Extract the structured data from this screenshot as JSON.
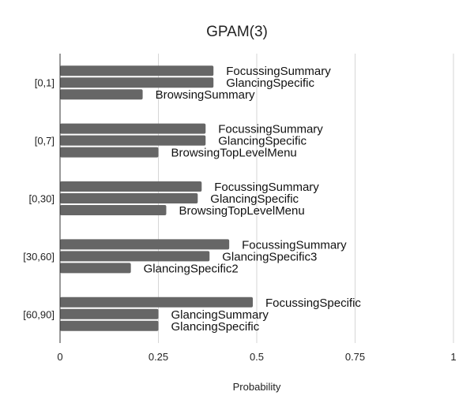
{
  "chart_data": {
    "type": "bar",
    "orientation": "horizontal",
    "title": "GPAM(3)",
    "xlabel": "Probability",
    "ylabel": "",
    "xlim": [
      0,
      1
    ],
    "xticks": [
      "0",
      "0.25",
      "0.5",
      "0.75",
      "1"
    ],
    "grid": true,
    "legend": "none",
    "bar_color": "#666666",
    "groups": [
      {
        "category": "[0,1]",
        "bars": [
          {
            "label": "FocussingSummary",
            "value": 0.39
          },
          {
            "label": "GlancingSpecific",
            "value": 0.39
          },
          {
            "label": "BrowsingSummary",
            "value": 0.21
          }
        ]
      },
      {
        "category": "[0,7]",
        "bars": [
          {
            "label": "FocussingSummary",
            "value": 0.37
          },
          {
            "label": "GlancingSpecific",
            "value": 0.37
          },
          {
            "label": "BrowsingTopLevelMenu",
            "value": 0.25
          }
        ]
      },
      {
        "category": "[0,30]",
        "bars": [
          {
            "label": "FocussingSummary",
            "value": 0.36
          },
          {
            "label": "GlancingSpecific",
            "value": 0.35
          },
          {
            "label": "BrowsingTopLevelMenu",
            "value": 0.27
          }
        ]
      },
      {
        "category": "[30,60]",
        "bars": [
          {
            "label": "FocussingSummary",
            "value": 0.43
          },
          {
            "label": "GlancingSpecific3",
            "value": 0.38
          },
          {
            "label": "GlancingSpecific2",
            "value": 0.18
          }
        ]
      },
      {
        "category": "[60,90]",
        "bars": [
          {
            "label": "FocussingSpecific",
            "value": 0.49
          },
          {
            "label": "GlancingSummary",
            "value": 0.25
          },
          {
            "label": "GlancingSpecific",
            "value": 0.25
          }
        ]
      }
    ]
  }
}
